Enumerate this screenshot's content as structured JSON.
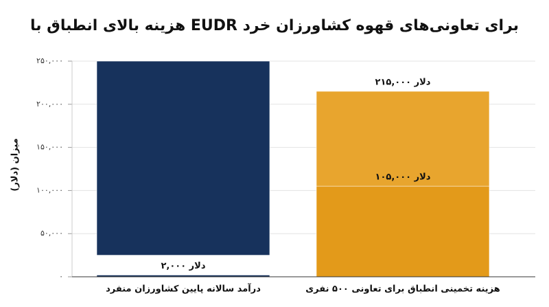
{
  "chart_data": {
    "type": "bar",
    "title": "هزینه بالای انطباق با EUDR برای تعاونی‌های قهوه کشاورزان خرد",
    "y_label": "میزان (دلار)",
    "categories": [
      "درآمد سالانه پایین کشاورزان منفرد",
      "هزینه تخمینی انطباق برای تعاونی ۵۰۰ نفری"
    ],
    "series": [
      {
        "colors": [
          "#17325c",
          "#e8a52e"
        ],
        "values": [
          250000,
          215000
        ],
        "starts": [
          25000,
          0
        ],
        "value_labels": [
          null,
          "۲۱۵,۰۰۰ دلار"
        ]
      },
      {
        "colors": [
          "#17325c",
          "#e39a1a"
        ],
        "values": [
          2000,
          105000
        ],
        "value_labels": [
          "۲,۰۰۰ دلار",
          "۱۰۵,۰۰۰ دلار"
        ]
      }
    ],
    "ylim": [
      0,
      250000
    ],
    "yticks": [
      {
        "value": 0,
        "label": "۰"
      },
      {
        "value": 50000,
        "label": "۵۰,۰۰۰"
      },
      {
        "value": 100000,
        "label": "۱۰۰,۰۰۰"
      },
      {
        "value": 150000,
        "label": "۱۵۰,۰۰۰"
      },
      {
        "value": 200000,
        "label": "۲۰۰,۰۰۰"
      },
      {
        "value": 250000,
        "label": "۲۵۰,۰۰۰"
      }
    ],
    "grid": true
  }
}
